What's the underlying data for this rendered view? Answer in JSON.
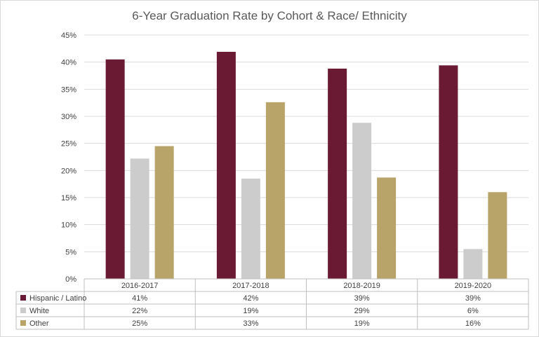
{
  "chart_data": {
    "type": "bar",
    "title": "6-Year Graduation Rate by Cohort & Race/ Ethnicity",
    "xlabel": "",
    "ylabel": "",
    "categories": [
      "2016-2017",
      "2017-2018",
      "2018-2019",
      "2019-2020"
    ],
    "y_ticks": [
      "0%",
      "5%",
      "10%",
      "15%",
      "20%",
      "25%",
      "30%",
      "35%",
      "40%",
      "45%"
    ],
    "ylim": [
      0,
      45
    ],
    "grid": true,
    "legend": "data-table",
    "series": [
      {
        "name": "Hispanic / Latino",
        "color": "#6b1a33",
        "values": [
          40.5,
          41.9,
          38.8,
          39.4
        ],
        "labels": [
          "41%",
          "42%",
          "39%",
          "39%"
        ]
      },
      {
        "name": "White",
        "color": "#cccccc",
        "values": [
          22.2,
          18.5,
          28.8,
          5.5
        ],
        "labels": [
          "22%",
          "19%",
          "29%",
          "6%"
        ]
      },
      {
        "name": "Other",
        "color": "#b8a469",
        "values": [
          24.5,
          32.6,
          18.7,
          16.0
        ],
        "labels": [
          "25%",
          "33%",
          "19%",
          "16%"
        ]
      }
    ]
  }
}
